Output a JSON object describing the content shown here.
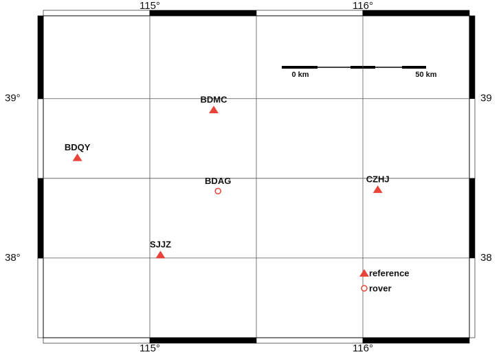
{
  "map": {
    "xlim": [
      114.5,
      116.5
    ],
    "ylim": [
      37.5,
      39.52
    ],
    "x_grid": [
      115,
      115.5,
      116
    ],
    "y_grid": [
      38,
      38.5,
      39
    ],
    "xticks": [
      {
        "value": 115,
        "label": "115°"
      },
      {
        "value": 116,
        "label": "116°"
      }
    ],
    "yticks": [
      {
        "value": 39,
        "label": "39°"
      },
      {
        "value": 38,
        "label": "38°"
      }
    ],
    "yticks_right": [
      {
        "value": 39,
        "label": "39"
      },
      {
        "value": 38,
        "label": "38"
      }
    ],
    "color": "#e8443a",
    "stations": [
      {
        "name": "BDMC",
        "lon": 115.3,
        "lat": 38.93,
        "symbol": "triangle"
      },
      {
        "name": "BDQY",
        "lon": 114.66,
        "lat": 38.63,
        "symbol": "triangle"
      },
      {
        "name": "BDAG",
        "lon": 115.32,
        "lat": 38.42,
        "symbol": "circle"
      },
      {
        "name": "CZHJ",
        "lon": 116.07,
        "lat": 38.43,
        "symbol": "triangle"
      },
      {
        "name": "SJJZ",
        "lon": 115.05,
        "lat": 38.02,
        "symbol": "triangle"
      }
    ],
    "legend": [
      {
        "label": "reference",
        "symbol": "triangle"
      },
      {
        "label": "rover",
        "symbol": "circle"
      }
    ],
    "scale_bar": {
      "labels": [
        "0 km",
        "50 km"
      ]
    }
  }
}
